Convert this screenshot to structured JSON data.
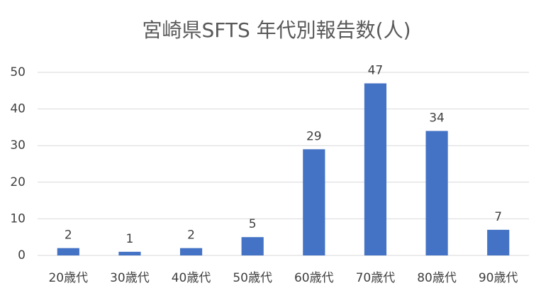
{
  "chart_data": {
    "type": "bar",
    "title": "宮崎県SFTS 年代別報告数(人)",
    "categories": [
      "20歳代",
      "30歳代",
      "40歳代",
      "50歳代",
      "60歳代",
      "70歳代",
      "80歳代",
      "90歳代"
    ],
    "values": [
      2,
      1,
      2,
      5,
      29,
      47,
      34,
      7
    ],
    "color": "#4472c4",
    "ylim": [
      0,
      50
    ],
    "yticks": [
      0,
      10,
      20,
      30,
      40,
      50
    ],
    "grid": true,
    "data_labels": true
  }
}
